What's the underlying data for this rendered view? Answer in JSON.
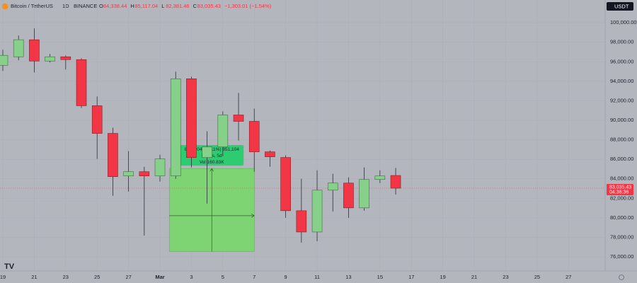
{
  "chart_data": {
    "type": "candlestick",
    "header": {
      "symbol": "Bitcoin / TetherUS",
      "interval": "1D",
      "exchange": "BINANCE",
      "ohlc": [
        {
          "key": "O",
          "text": "84,338.44"
        },
        {
          "key": "H",
          "text": "85,117.04"
        },
        {
          "key": "L",
          "text": "82,381.46"
        },
        {
          "key": "C",
          "text": "83,035.43"
        }
      ],
      "change": "−1,303.01 (−1.54%)"
    },
    "currency_button": "USDT",
    "x": [
      0,
      1,
      2,
      3,
      4,
      5,
      6,
      7,
      8,
      9,
      10,
      11,
      12,
      13,
      14,
      15,
      16,
      17,
      18,
      19,
      20,
      21,
      22,
      23,
      24,
      25
    ],
    "open": [
      95636,
      96509,
      98255,
      96073,
      96509,
      96218,
      91491,
      88655,
      84291,
      84727,
      84291,
      84291,
      94255,
      86182,
      87273,
      90545,
      89891,
      86764,
      86182,
      80727,
      78545,
      82836,
      83564,
      81018,
      83927,
      84338.44
    ],
    "high": [
      97236,
      98691,
      99418,
      96800,
      96655,
      96364,
      92436,
      89236,
      86836,
      85236,
      86473,
      94982,
      94473,
      88873,
      90909,
      92800,
      91200,
      86909,
      86400,
      84000,
      84873,
      84509,
      84145,
      85164,
      84873,
      85117.04
    ],
    "low": [
      95055,
      96145,
      94909,
      95927,
      95200,
      91273,
      86036,
      82255,
      82691,
      78182,
      83709,
      84000,
      85164,
      81455,
      86327,
      87927,
      84727,
      85236,
      80000,
      77455,
      77600,
      80655,
      80000,
      80727,
      83564,
      82381.46
    ],
    "close": [
      96655,
      98255,
      96073,
      96509,
      96218,
      91491,
      88655,
      84218,
      84727,
      84291,
      86036,
      94255,
      86182,
      87273,
      90545,
      89891,
      86764,
      86255,
      80727,
      78545,
      82836,
      83564,
      81018,
      83927,
      84291,
      83035.43
    ],
    "up_color": "#86d08a",
    "down_color": "#f23645",
    "xlim": [
      -0.18,
      38.33
    ],
    "xticks": [
      {
        "value": 0,
        "label": "19"
      },
      {
        "value": 2,
        "label": "21"
      },
      {
        "value": 4,
        "label": "23"
      },
      {
        "value": 6,
        "label": "25"
      },
      {
        "value": 8,
        "label": "27"
      },
      {
        "value": 10,
        "label": "Mar"
      },
      {
        "value": 12,
        "label": "3"
      },
      {
        "value": 14,
        "label": "5"
      },
      {
        "value": 16,
        "label": "7"
      },
      {
        "value": 18,
        "label": "9"
      },
      {
        "value": 20,
        "label": "11"
      },
      {
        "value": 22,
        "label": "13"
      },
      {
        "value": 24,
        "label": "15"
      },
      {
        "value": 26,
        "label": "17"
      },
      {
        "value": 28,
        "label": "19"
      },
      {
        "value": 30,
        "label": "21"
      },
      {
        "value": 32,
        "label": "23"
      },
      {
        "value": 34,
        "label": "25"
      },
      {
        "value": 36,
        "label": "27"
      }
    ],
    "ylim": [
      74550,
      102330
    ],
    "yticks": [
      {
        "value": 76000,
        "label": "76,000.00"
      },
      {
        "value": 78000,
        "label": "78,000.00"
      },
      {
        "value": 80000,
        "label": "80,000.00"
      },
      {
        "value": 82000,
        "label": "82,000.00"
      },
      {
        "value": 84000,
        "label": "84,000.00"
      },
      {
        "value": 86000,
        "label": "86,000.00"
      },
      {
        "value": 88000,
        "label": "88,000.00"
      },
      {
        "value": 90000,
        "label": "90,000.00"
      },
      {
        "value": 92000,
        "label": "92,000.00"
      },
      {
        "value": 94000,
        "label": "94,000.00"
      },
      {
        "value": 96000,
        "label": "96,000.00"
      },
      {
        "value": 98000,
        "label": "98,000.00"
      },
      {
        "value": 100000,
        "label": "100,000.00"
      }
    ],
    "grid": true,
    "price_label": "83,035.43",
    "countdown": "04:36:36",
    "measure": {
      "x": [
        11,
        16
      ],
      "y": [
        76544,
        85055
      ],
      "lines": [
        "8,511.04 (11.11%) 851,104",
        "5 bars, 5d",
        "Vol 160.83K"
      ],
      "color": "#74d966"
    }
  }
}
